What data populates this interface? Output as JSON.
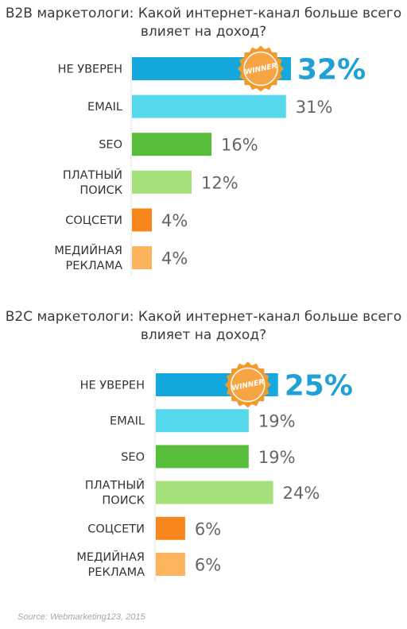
{
  "winner_label": "WINNER",
  "source": "Source: Webmarketing123, 2015",
  "colors": [
    "#15a8dc",
    "#55d8ec",
    "#57bd3a",
    "#a4e17a",
    "#f7861d",
    "#fbb35c"
  ],
  "chart_data": [
    {
      "type": "bar",
      "title": "B2B маркетологи: Какой интернет-канал больше всего влияет на доход?",
      "categories": [
        [
          "НЕ УВЕРЕН"
        ],
        [
          "EMAIL"
        ],
        [
          "SEO"
        ],
        [
          "ПЛАТНЫЙ",
          "ПОИСК"
        ],
        [
          "СОЦСЕТИ"
        ],
        [
          "МЕДИЙНАЯ",
          "РЕКЛАМА"
        ]
      ],
      "values": [
        32,
        31,
        16,
        12,
        4,
        4
      ],
      "value_labels": [
        "32%",
        "31%",
        "16%",
        "12%",
        "4%",
        "4%"
      ],
      "winner_index": 0
    },
    {
      "type": "bar",
      "title": "B2C маркетологи: Какой интернет-канал больше всего влияет на доход?",
      "categories": [
        [
          "НЕ УВЕРЕН"
        ],
        [
          "EMAIL"
        ],
        [
          "SEO"
        ],
        [
          "ПЛАТНЫЙ",
          "ПОИСК"
        ],
        [
          "СОЦСЕТИ"
        ],
        [
          "МЕДИЙНАЯ",
          "РЕКЛАМА"
        ]
      ],
      "values": [
        25,
        19,
        19,
        24,
        6,
        6
      ],
      "value_labels": [
        "25%",
        "19%",
        "19%",
        "24%",
        "6%",
        "6%"
      ],
      "winner_index": 0
    }
  ]
}
